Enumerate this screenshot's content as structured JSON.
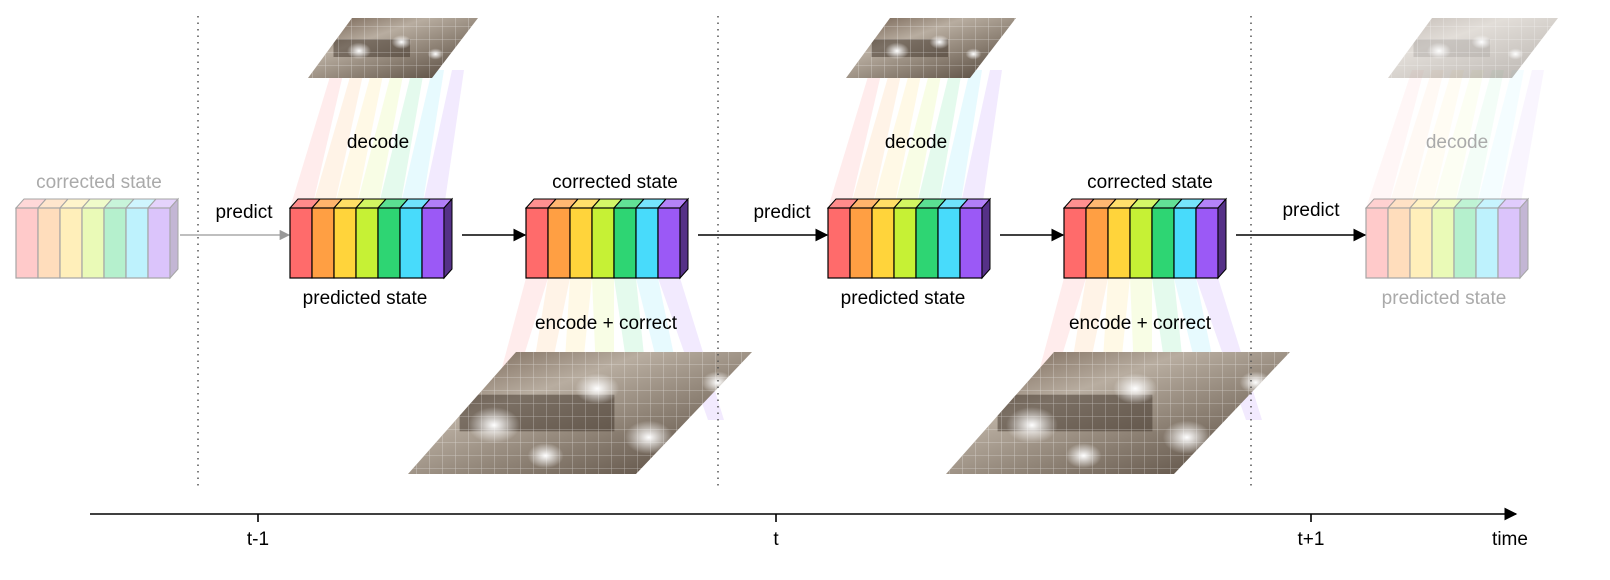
{
  "labels": {
    "predict": "predict",
    "decode": "decode",
    "encode_correct": "encode + correct",
    "predicted_state": "predicted state",
    "corrected_state": "corrected state"
  },
  "timeline": {
    "ticks": [
      "t-1",
      "t",
      "t+1"
    ],
    "axis_label": "time"
  },
  "colors": {
    "state_cells": [
      "#ff6b6b",
      "#ff9f43",
      "#ffd43b",
      "#c6f135",
      "#2ed573",
      "#48dbfb",
      "#9b59f6"
    ],
    "text_active": "#000000",
    "text_faded": "#aaaaaa",
    "arrow": "#000000",
    "divider": "#555555"
  }
}
